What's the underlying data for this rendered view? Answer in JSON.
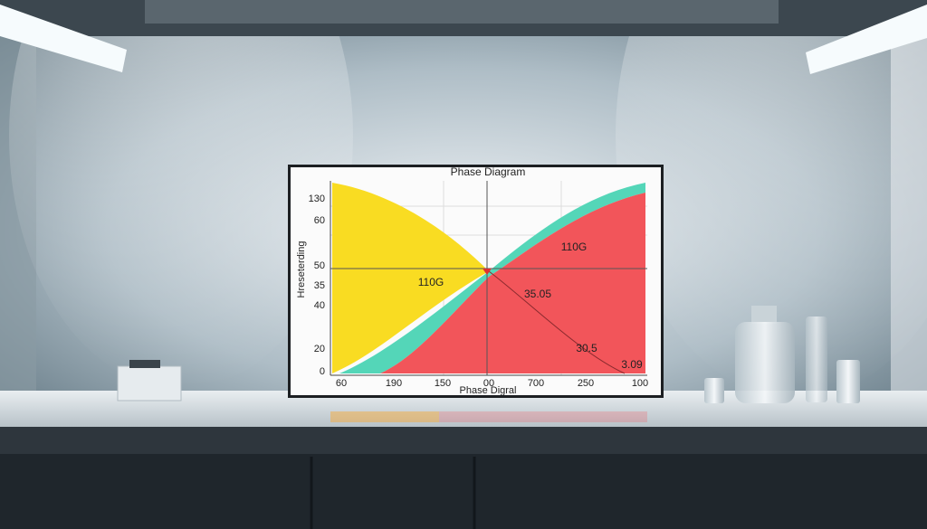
{
  "board": {
    "title": "Phase Diagram",
    "y_axis_label": "Hreseterding",
    "y_labels": [
      "130",
      "60",
      "50",
      "35",
      "40",
      "20",
      "0"
    ],
    "x_labels": [
      "60",
      "190",
      "150",
      "00",
      "700",
      "250",
      "100"
    ],
    "x_axis_label": "Phase Digral",
    "annotations": [
      "110G",
      "110G",
      "35.05",
      "30.5",
      "3.09"
    ]
  }
}
